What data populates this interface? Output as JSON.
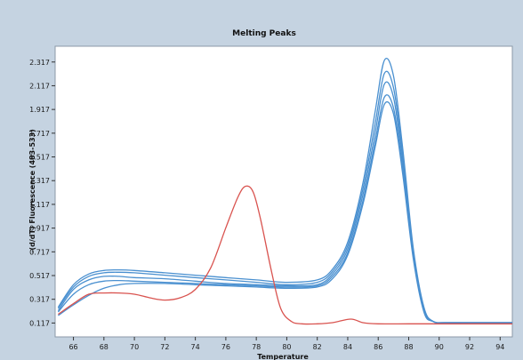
{
  "chart_data": {
    "type": "line",
    "title": "Melting Peaks",
    "xlabel": "Temperature",
    "ylabel": "-(d/dT) Fluorescence (483-533)",
    "xlim": [
      64.8,
      94.8
    ],
    "ylim": [
      0.0,
      2.45
    ],
    "x_ticks": [
      "66",
      "68",
      "70",
      "72",
      "74",
      "76",
      "78",
      "80",
      "82",
      "84",
      "86",
      "88",
      "90",
      "92",
      "94"
    ],
    "y_ticks": [
      "0.117",
      "0.317",
      "0.517",
      "0.717",
      "0.917",
      "1.117",
      "1.317",
      "1.517",
      "1.717",
      "1.917",
      "2.117",
      "2.317"
    ],
    "grid": false,
    "legend": "none",
    "colors": {
      "blue_series": "#4a90d0",
      "red_series": "#d9534f",
      "background": "#c5d3e1"
    },
    "series": [
      {
        "color": "#4a90d0",
        "x": [
          65,
          66,
          67,
          68,
          69,
          70,
          72,
          74,
          76,
          78,
          80,
          82,
          83,
          84,
          85,
          85.8,
          86.4,
          87,
          87.6,
          88.3,
          89,
          89.6,
          90.4,
          92,
          94.8
        ],
        "y": [
          0.25,
          0.44,
          0.53,
          0.56,
          0.565,
          0.56,
          0.54,
          0.52,
          0.5,
          0.48,
          0.46,
          0.48,
          0.57,
          0.8,
          1.3,
          1.9,
          2.33,
          2.2,
          1.6,
          0.75,
          0.25,
          0.13,
          0.12,
          0.12,
          0.12
        ]
      },
      {
        "color": "#4a90d0",
        "x": [
          65,
          66,
          67,
          68,
          69,
          70,
          72,
          74,
          76,
          78,
          80,
          82,
          83,
          84,
          85,
          85.8,
          86.4,
          87,
          87.6,
          88.3,
          89,
          89.6,
          90.4,
          92,
          94.8
        ],
        "y": [
          0.24,
          0.42,
          0.51,
          0.54,
          0.545,
          0.54,
          0.52,
          0.5,
          0.48,
          0.46,
          0.44,
          0.46,
          0.55,
          0.77,
          1.25,
          1.8,
          2.22,
          2.1,
          1.54,
          0.72,
          0.24,
          0.13,
          0.12,
          0.12,
          0.12
        ]
      },
      {
        "color": "#4a90d0",
        "x": [
          65,
          66,
          67,
          68,
          69,
          70,
          72,
          74,
          76,
          78,
          80,
          82,
          83,
          84,
          85,
          85.8,
          86.4,
          87,
          87.6,
          88.3,
          89,
          89.6,
          90.4,
          92,
          94.8
        ],
        "y": [
          0.22,
          0.4,
          0.48,
          0.51,
          0.51,
          0.5,
          0.49,
          0.47,
          0.45,
          0.44,
          0.43,
          0.44,
          0.53,
          0.74,
          1.2,
          1.72,
          2.13,
          2.02,
          1.48,
          0.7,
          0.23,
          0.13,
          0.12,
          0.12,
          0.12
        ]
      },
      {
        "color": "#4a90d0",
        "x": [
          65,
          66,
          67,
          68,
          69,
          70,
          72,
          74,
          76,
          78,
          80,
          82,
          83,
          84,
          85,
          85.8,
          86.4,
          87,
          87.6,
          88.3,
          89,
          89.6,
          90.4,
          92,
          94.8
        ],
        "y": [
          0.21,
          0.36,
          0.44,
          0.47,
          0.475,
          0.47,
          0.46,
          0.45,
          0.44,
          0.43,
          0.42,
          0.43,
          0.51,
          0.71,
          1.15,
          1.65,
          2.02,
          1.93,
          1.42,
          0.68,
          0.22,
          0.13,
          0.12,
          0.12,
          0.12
        ]
      },
      {
        "color": "#4a90d0",
        "x": [
          65,
          66,
          67,
          68,
          69,
          70,
          72,
          74,
          76,
          78,
          80,
          82,
          83,
          84,
          85,
          85.8,
          86.4,
          87,
          87.6,
          88.3,
          89,
          89.6,
          90.4,
          92,
          94.8
        ],
        "y": [
          0.18,
          0.27,
          0.35,
          0.41,
          0.44,
          0.45,
          0.45,
          0.44,
          0.43,
          0.42,
          0.41,
          0.42,
          0.49,
          0.69,
          1.12,
          1.6,
          1.96,
          1.88,
          1.38,
          0.66,
          0.21,
          0.13,
          0.12,
          0.12,
          0.12
        ]
      },
      {
        "color": "#d9534f",
        "x": [
          65,
          66,
          67,
          68,
          69,
          70,
          71,
          72,
          73,
          74,
          75,
          76,
          76.8,
          77.3,
          77.8,
          78.3,
          79,
          79.6,
          80.3,
          81,
          82,
          83,
          84.2,
          85,
          86,
          88,
          90,
          92,
          94.8
        ],
        "y": [
          0.19,
          0.28,
          0.36,
          0.37,
          0.37,
          0.36,
          0.33,
          0.31,
          0.33,
          0.4,
          0.58,
          0.92,
          1.18,
          1.27,
          1.22,
          0.98,
          0.55,
          0.24,
          0.13,
          0.11,
          0.11,
          0.12,
          0.15,
          0.12,
          0.11,
          0.11,
          0.11,
          0.11,
          0.11
        ]
      }
    ]
  }
}
